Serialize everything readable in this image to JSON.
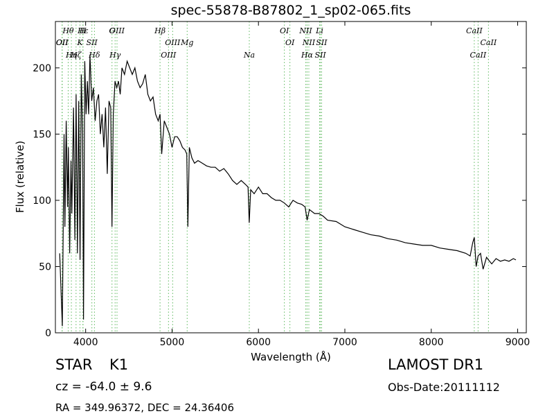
{
  "page": {
    "title": "spec-55878-B87802_1_sp02-065.fits",
    "object_class": "STAR",
    "object_subclass": "K1",
    "survey": "LAMOST DR1",
    "redshift_text": "cz = -64.0 ± 9.6",
    "obs_date": "Obs-Date:20111112",
    "coordinates": "RA = 349.96372, DEC = 24.36406"
  },
  "chart_data": {
    "type": "line",
    "title": "spec-55878-B87802_1_sp02-065.fits",
    "xlabel": "Wavelength (Å)",
    "ylabel": "Flux (relative)",
    "xlim": [
      3650,
      9100
    ],
    "ylim": [
      0,
      235
    ],
    "xticks": [
      4000,
      5000,
      6000,
      7000,
      8000,
      9000
    ],
    "yticks": [
      0,
      50,
      100,
      150,
      200
    ],
    "grid": false,
    "line_color": "#000000",
    "marker_color": "#5cb85c",
    "series": [
      {
        "x": [
          3700,
          3730,
          3750,
          3760,
          3775,
          3790,
          3800,
          3815,
          3830,
          3840,
          3860,
          3875,
          3890,
          3905,
          3920,
          3935,
          3950,
          3965,
          3975,
          3990,
          4005,
          4020,
          4035,
          4050,
          4070,
          4090,
          4110,
          4130,
          4150,
          4170,
          4190,
          4210,
          4230,
          4250,
          4270,
          4290,
          4305,
          4320,
          4340,
          4360,
          4380,
          4400,
          4420,
          4450,
          4480,
          4510,
          4540,
          4570,
          4600,
          4630,
          4660,
          4690,
          4720,
          4750,
          4780,
          4810,
          4840,
          4861,
          4880,
          4910,
          4940,
          4970,
          5000,
          5030,
          5060,
          5090,
          5120,
          5150,
          5170,
          5183,
          5200,
          5230,
          5260,
          5300,
          5350,
          5400,
          5450,
          5500,
          5550,
          5600,
          5650,
          5700,
          5750,
          5800,
          5850,
          5880,
          5893,
          5910,
          5950,
          6000,
          6050,
          6100,
          6150,
          6200,
          6250,
          6300,
          6350,
          6400,
          6450,
          6500,
          6540,
          6563,
          6590,
          6650,
          6700,
          6750,
          6800,
          6900,
          7000,
          7100,
          7200,
          7300,
          7400,
          7500,
          7600,
          7700,
          7800,
          7900,
          8000,
          8100,
          8200,
          8300,
          8400,
          8450,
          8480,
          8498,
          8520,
          8542,
          8570,
          8600,
          8640,
          8662,
          8700,
          8750,
          8800,
          8850,
          8900,
          8950,
          8980
        ],
        "values": [
          60,
          5,
          150,
          80,
          160,
          95,
          140,
          60,
          130,
          90,
          170,
          70,
          180,
          60,
          175,
          55,
          195,
          150,
          10,
          205,
          165,
          190,
          165,
          210,
          175,
          185,
          160,
          175,
          180,
          150,
          165,
          140,
          170,
          120,
          175,
          170,
          80,
          165,
          190,
          185,
          190,
          180,
          200,
          195,
          205,
          200,
          195,
          200,
          190,
          185,
          188,
          195,
          180,
          175,
          178,
          165,
          160,
          165,
          135,
          160,
          155,
          150,
          140,
          148,
          148,
          145,
          140,
          138,
          135,
          80,
          140,
          132,
          128,
          130,
          128,
          126,
          125,
          125,
          122,
          124,
          120,
          115,
          112,
          115,
          112,
          110,
          83,
          108,
          105,
          110,
          105,
          105,
          102,
          100,
          100,
          98,
          95,
          100,
          98,
          97,
          95,
          85,
          93,
          90,
          90,
          88,
          85,
          84,
          80,
          78,
          76,
          74,
          73,
          71,
          70,
          68,
          67,
          66,
          66,
          64,
          63,
          62,
          60,
          58,
          68,
          72,
          50,
          58,
          60,
          48,
          57,
          55,
          52,
          56,
          54,
          55,
          54,
          56,
          55
        ]
      }
    ],
    "lines_top": [
      {
        "label": "Hθ",
        "x": 3798
      },
      {
        "label": "K",
        "x": 3934
      },
      {
        "label": "Hδ",
        "x": 4102
      },
      {
        "label": "OIII",
        "x": 4363
      },
      {
        "label": "OII",
        "x": 3727
      },
      {
        "label": "Hζ",
        "x": 3889
      },
      {
        "label": "Hε",
        "x": 3970
      },
      {
        "label": "SII",
        "x": 4072
      },
      {
        "label": "Hη",
        "x": 3835
      },
      {
        "label": "H",
        "x": 3968
      },
      {
        "label": "OII",
        "x": 3729
      },
      {
        "label": "Hγ",
        "x": 4341
      },
      {
        "label": "G",
        "x": 4305
      },
      {
        "label": "OIII",
        "x": 5007
      },
      {
        "label": "OIII",
        "x": 4959
      },
      {
        "label": "Hβ",
        "x": 4861
      },
      {
        "label": "Mg",
        "x": 5175
      },
      {
        "label": "Na",
        "x": 5894
      },
      {
        "label": "OI",
        "x": 6300
      },
      {
        "label": "OI",
        "x": 6364
      },
      {
        "label": "Hα",
        "x": 6563
      },
      {
        "label": "NII",
        "x": 6548
      },
      {
        "label": "NII",
        "x": 6583
      },
      {
        "label": "SII",
        "x": 6717
      },
      {
        "label": "Li",
        "x": 6708
      },
      {
        "label": "SII",
        "x": 6731
      },
      {
        "label": "CaII",
        "x": 8542
      },
      {
        "label": "CaII",
        "x": 8498
      },
      {
        "label": "CaII",
        "x": 8662
      }
    ]
  }
}
